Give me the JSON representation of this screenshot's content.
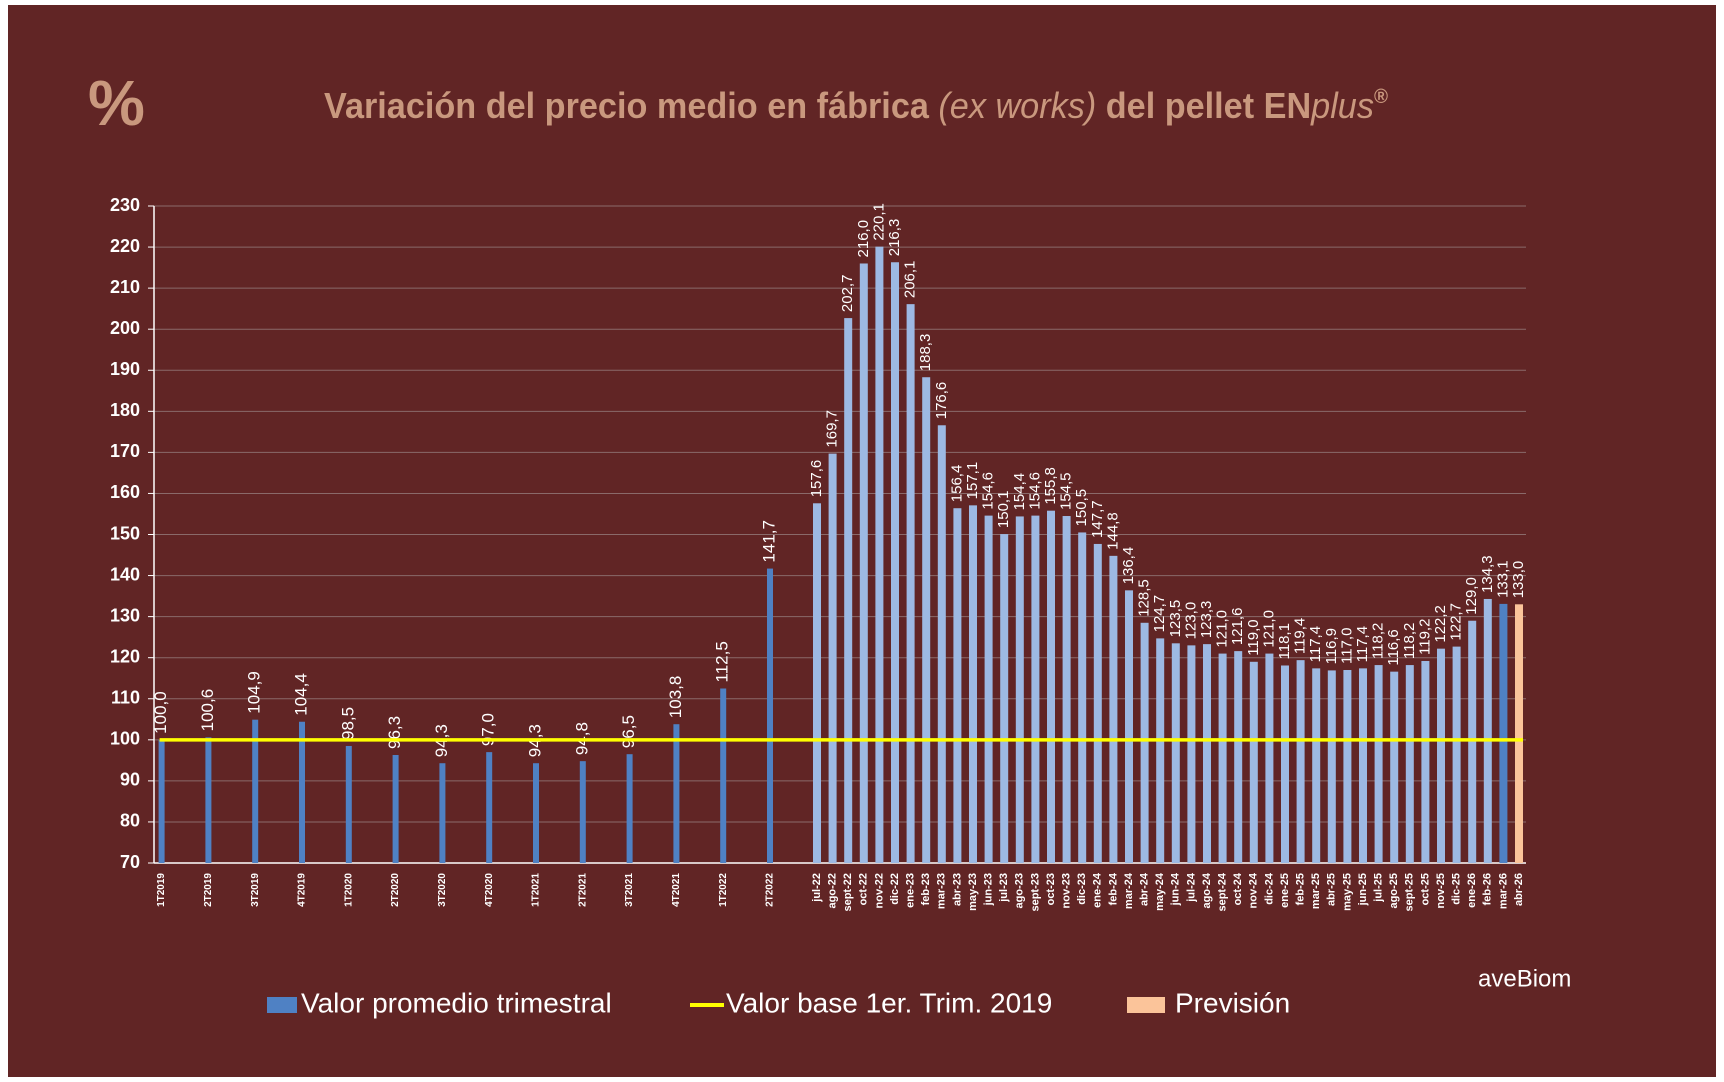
{
  "chart_data": {
    "type": "bar",
    "symbol": "%",
    "title": [
      "Variación del precio medio en fábrica ",
      "(ex works)",
      " del pellet EN",
      "plus",
      "®"
    ],
    "brand": "aveBiom",
    "categories": [
      "1T2019",
      "2T2019",
      "3T2019",
      "4T2019",
      "1T2020",
      "2T2020",
      "3T2020",
      "4T2020",
      "1T2021",
      "2T2021",
      "3T2021",
      "4T2021",
      "1T2022",
      "2T2022",
      "jul-22",
      "ago-22",
      "sept-22",
      "oct-22",
      "nov-22",
      "dic-22",
      "ene-23",
      "feb-23",
      "mar-23",
      "abr-23",
      "may-23",
      "jun-23",
      "jul-23",
      "ago-23",
      "sept-23",
      "oct-23",
      "nov-23",
      "dic-23",
      "ene-24",
      "feb-24",
      "mar-24",
      "abr-24",
      "may-24",
      "jun-24",
      "jul-24",
      "ago-24",
      "sept-24",
      "oct-24",
      "nov-24",
      "dic-24",
      "ene-25",
      "feb-25",
      "mar-25",
      "abr-25",
      "may-25",
      "jun-25",
      "jul-25",
      "ago-25",
      "sept-25",
      "oct-25",
      "nov-25",
      "dic-25",
      "ene-26",
      "feb-26",
      "mar-26",
      "abr-26"
    ],
    "series": [
      {
        "name": "Valor promedio trimestral",
        "color": "#4f81c4",
        "colors": [
          "#4f81c4",
          "#4f81c4",
          "#4f81c4",
          "#4f81c4",
          "#4f81c4",
          "#4f81c4",
          "#4f81c4",
          "#4f81c4",
          "#4f81c4",
          "#4f81c4",
          "#4f81c4",
          "#4f81c4",
          "#4f81c4",
          "#4f81c4",
          "#9db9e3",
          "#9db9e3",
          "#9db9e3",
          "#9db9e3",
          "#9db9e3",
          "#9db9e3",
          "#9db9e3",
          "#9db9e3",
          "#9db9e3",
          "#9db9e3",
          "#9db9e3",
          "#9db9e3",
          "#9db9e3",
          "#9db9e3",
          "#9db9e3",
          "#9db9e3",
          "#9db9e3",
          "#9db9e3",
          "#9db9e3",
          "#9db9e3",
          "#9db9e3",
          "#9db9e3",
          "#9db9e3",
          "#9db9e3",
          "#9db9e3",
          "#9db9e3",
          "#9db9e3",
          "#9db9e3",
          "#9db9e3",
          "#9db9e3",
          "#9db9e3",
          "#9db9e3",
          "#9db9e3",
          "#9db9e3",
          "#9db9e3",
          "#9db9e3",
          "#9db9e3",
          "#9db9e3",
          "#9db9e3",
          "#9db9e3",
          "#9db9e3",
          "#9db9e3",
          "#9db9e3",
          "#9db9e3",
          "#4f81c4",
          null
        ],
        "values": [
          100.0,
          100.6,
          104.9,
          104.4,
          98.5,
          96.3,
          94.3,
          97.0,
          94.3,
          94.8,
          96.5,
          103.8,
          112.5,
          141.7,
          157.6,
          169.7,
          202.7,
          216.0,
          220.1,
          216.3,
          206.1,
          188.3,
          176.6,
          156.4,
          157.1,
          154.6,
          150.1,
          154.4,
          154.6,
          155.8,
          154.5,
          150.5,
          147.7,
          144.8,
          136.4,
          128.5,
          124.7,
          123.5,
          123.0,
          123.3,
          121.0,
          121.6,
          119.0,
          121.0,
          118.1,
          119.4,
          117.4,
          116.9,
          117.0,
          117.4,
          118.2,
          116.6,
          118.2,
          119.2,
          122.2,
          122.7,
          129.0,
          134.3,
          133.1,
          null
        ],
        "value_labels": [
          "100,0",
          "100,6",
          "104,9",
          "104,4",
          "98,5",
          "96,3",
          "94,3",
          "97,0",
          "94,3",
          "94,8",
          "96,5",
          "103,8",
          "112,5",
          "141,7",
          "157,6",
          "169,7",
          "202,7",
          "216,0",
          "220,1",
          "216,3",
          "206,1",
          "188,3",
          "176,6",
          "156,4",
          "157,1",
          "154,6",
          "150,1",
          "154,4",
          "154,6",
          "155,8",
          "154,5",
          "150,5",
          "147,7",
          "144,8",
          "136,4",
          "128,5",
          "124,7",
          "123,5",
          "123,0",
          "123,3",
          "121,0",
          "121,6",
          "119,0",
          "121,0",
          "118,1",
          "119,4",
          "117,4",
          "116,9",
          "117,0",
          "117,4",
          "118,2",
          "116,6",
          "118,2",
          "119,2",
          "122,2",
          "122,7",
          "129,0",
          "134,3",
          "133,1",
          null
        ]
      },
      {
        "name": "Valor base 1er. Trim. 2019",
        "color": "#ffff00",
        "value": 100
      },
      {
        "name": "Previsión",
        "color": "#fbc49a",
        "values": [
          null,
          null,
          null,
          null,
          null,
          null,
          null,
          null,
          null,
          null,
          null,
          null,
          null,
          null,
          null,
          null,
          null,
          null,
          null,
          null,
          null,
          null,
          null,
          null,
          null,
          null,
          null,
          null,
          null,
          null,
          null,
          null,
          null,
          null,
          null,
          null,
          null,
          null,
          null,
          null,
          null,
          null,
          null,
          null,
          null,
          null,
          null,
          null,
          null,
          null,
          null,
          null,
          null,
          null,
          null,
          null,
          null,
          null,
          null,
          133.0
        ],
        "value_labels": [
          null,
          null,
          null,
          null,
          null,
          null,
          null,
          null,
          null,
          null,
          null,
          null,
          null,
          null,
          null,
          null,
          null,
          null,
          null,
          null,
          null,
          null,
          null,
          null,
          null,
          null,
          null,
          null,
          null,
          null,
          null,
          null,
          null,
          null,
          null,
          null,
          null,
          null,
          null,
          null,
          null,
          null,
          null,
          null,
          null,
          null,
          null,
          null,
          null,
          null,
          null,
          null,
          null,
          null,
          null,
          null,
          null,
          null,
          null,
          "133,0"
        ]
      }
    ],
    "ylim": [
      70,
      230
    ],
    "yticks": [
      70,
      80,
      90,
      100,
      110,
      120,
      130,
      140,
      150,
      160,
      170,
      180,
      190,
      200,
      210,
      220,
      230
    ],
    "grid": true
  }
}
